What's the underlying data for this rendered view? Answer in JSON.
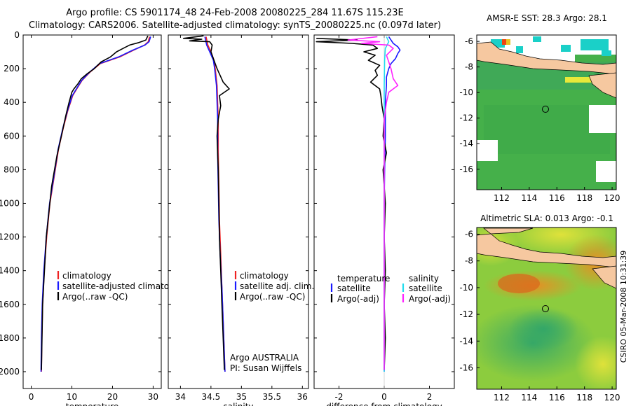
{
  "figure": {
    "title_line1": "Argo profile: CS 5901174_48 24-Feb-2008 20080225_284 11.67S 115.23E",
    "title_line2": "Climatology: CARS2006. Satellite-adjusted climatology: synTS_20080225.nc (0.097d later)",
    "side_stamp": "CSIRO 05-Mar-2008 10:31:39",
    "colors": {
      "climatology": "#ee2222",
      "satellite": "#1a1aff",
      "argo": "#000000",
      "satellite_salinity": "#22ddee",
      "argo_salinity_adj": "#ff22ff",
      "land": "#f6c8a0"
    }
  },
  "chart_data": [
    {
      "type": "line",
      "id": "temperature",
      "xlabel": "temperature",
      "ylabel": "",
      "xlim": [
        -2,
        32
      ],
      "ylim": [
        2100,
        0
      ],
      "y_inverted": true,
      "xticks": [
        0,
        10,
        20,
        30
      ],
      "yticks": [
        0,
        200,
        400,
        600,
        800,
        1000,
        1200,
        1400,
        1600,
        1800,
        2000
      ],
      "legend_placement": "lower-right",
      "legend": [
        "climatology",
        "satellite-adjusted climatology",
        "Argo(..raw -QC)"
      ],
      "series": [
        {
          "name": "climatology",
          "color": "climatology",
          "x": [
            29.1,
            28.8,
            27.9,
            25.2,
            21.8,
            17.0,
            14.5,
            12.5,
            11.2,
            10.2,
            9.0,
            7.9,
            6.7,
            5.6,
            4.6,
            3.8,
            3.2,
            2.8,
            2.6,
            2.5
          ],
          "y": [
            10,
            40,
            60,
            90,
            130,
            170,
            220,
            270,
            320,
            360,
            450,
            550,
            680,
            850,
            1000,
            1200,
            1400,
            1600,
            1800,
            2000
          ]
        },
        {
          "name": "satellite-adjusted climatology",
          "color": "satellite",
          "x": [
            29.4,
            29.0,
            28.0,
            25.0,
            21.5,
            16.8,
            14.4,
            12.4,
            11.1,
            10.1,
            8.9,
            7.8,
            6.6,
            5.5,
            4.5,
            3.7,
            3.1,
            2.7,
            2.5,
            2.4
          ],
          "y": [
            10,
            40,
            60,
            90,
            130,
            170,
            220,
            270,
            320,
            360,
            450,
            550,
            680,
            850,
            1000,
            1200,
            1400,
            1600,
            1800,
            2000
          ]
        },
        {
          "name": "Argo(..raw -QC)",
          "color": "argo",
          "x": [
            28.7,
            28.2,
            26.5,
            24.2,
            22.6,
            21.0,
            19.5,
            17.2,
            15.5,
            13.8,
            12.3,
            11.5,
            10.5,
            10.0,
            9.3,
            8.5,
            7.6,
            6.3,
            5.0,
            3.7,
            2.8,
            2.5
          ],
          "y": [
            5,
            30,
            45,
            60,
            80,
            100,
            130,
            160,
            200,
            230,
            260,
            290,
            320,
            340,
            400,
            480,
            580,
            720,
            900,
            1200,
            1600,
            1990
          ]
        }
      ]
    },
    {
      "type": "line",
      "id": "salinity",
      "xlabel": "salinity",
      "ylabel": "",
      "xlim": [
        33.8,
        36.1
      ],
      "ylim": [
        2100,
        0
      ],
      "y_inverted": true,
      "xticks": [
        34,
        34.5,
        35,
        35.5,
        36
      ],
      "yticks": [
        0,
        200,
        400,
        600,
        800,
        1000,
        1200,
        1400,
        1600,
        1800,
        2000
      ],
      "legend_placement": "lower-right",
      "legend": [
        "climatology",
        "satellite adj. clim.",
        "Argo(..raw -QC)"
      ],
      "annotation_lines": [
        "Argo AUSTRALIA",
        "PI: Susan Wijffels"
      ],
      "series": [
        {
          "name": "climatology",
          "color": "climatology",
          "x": [
            34.42,
            34.45,
            34.5,
            34.55,
            34.57,
            34.6,
            34.61,
            34.62,
            34.62,
            34.62,
            34.63,
            34.64,
            34.66,
            34.68,
            34.7,
            34.72,
            34.73
          ],
          "y": [
            10,
            60,
            100,
            150,
            200,
            300,
            400,
            500,
            600,
            700,
            900,
            1100,
            1300,
            1500,
            1700,
            1900,
            2000
          ]
        },
        {
          "name": "satellite adj. clim.",
          "color": "satellite",
          "x": [
            34.4,
            34.43,
            34.48,
            34.54,
            34.56,
            34.59,
            34.6,
            34.61,
            34.61,
            34.61,
            34.62,
            34.63,
            34.65,
            34.68,
            34.7,
            34.72,
            34.73
          ],
          "y": [
            10,
            60,
            100,
            150,
            200,
            300,
            400,
            500,
            600,
            700,
            900,
            1100,
            1300,
            1500,
            1700,
            1900,
            2000
          ]
        },
        {
          "name": "Argo(..raw -QC)",
          "color": "argo",
          "x": [
            34.38,
            34.05,
            34.35,
            34.15,
            34.48,
            34.52,
            34.5,
            34.55,
            34.6,
            34.7,
            34.8,
            34.64,
            34.66,
            34.62,
            34.6,
            34.61,
            34.62,
            34.63,
            34.64,
            34.66,
            34.68,
            34.7,
            34.72
          ],
          "y": [
            5,
            20,
            25,
            35,
            40,
            60,
            100,
            150,
            200,
            280,
            320,
            360,
            420,
            500,
            600,
            700,
            800,
            1000,
            1200,
            1400,
            1600,
            1800,
            1990
          ]
        }
      ]
    },
    {
      "type": "line",
      "id": "difference",
      "xlabel": "difference from climatology",
      "ylabel": "",
      "xlim": [
        -3.1,
        3.1
      ],
      "ylim": [
        2100,
        0
      ],
      "y_inverted": true,
      "xticks": [
        -2,
        0,
        2
      ],
      "yticks": [
        0,
        200,
        400,
        600,
        800,
        1000,
        1200,
        1400,
        1600,
        1800,
        2000
      ],
      "legend_placement": "lower",
      "legend_groups": [
        {
          "heading": "temperature",
          "items": [
            "satellite",
            "Argo(-adj)"
          ]
        },
        {
          "heading": "salinity",
          "items": [
            "satellite",
            "Argo(-adj)"
          ]
        }
      ],
      "series": [
        {
          "name": "temperature satellite",
          "color": "satellite",
          "x": [
            0.2,
            0.3,
            0.4,
            0.6,
            0.7,
            0.6,
            0.5,
            0.3,
            0.2,
            0.1,
            0.1,
            0.05,
            0.05,
            0.02,
            0.0,
            0.0,
            0.0,
            0.0
          ],
          "y": [
            10,
            30,
            50,
            70,
            90,
            110,
            140,
            170,
            200,
            250,
            300,
            400,
            600,
            800,
            1000,
            1300,
            1600,
            2000
          ]
        },
        {
          "name": "temperature Argo(-adj)",
          "color": "argo",
          "x": [
            -3.0,
            -1.2,
            -3.0,
            -1.4,
            -0.5,
            -0.3,
            -0.9,
            -0.4,
            -0.7,
            -0.2,
            -0.4,
            -0.3,
            -0.6,
            -0.2,
            -0.15,
            -0.1,
            0.0,
            -0.05,
            0.1,
            -0.05,
            0.05,
            0.0,
            0.05,
            0.0,
            0.05,
            0.0
          ],
          "y": [
            20,
            30,
            40,
            50,
            60,
            80,
            100,
            120,
            150,
            180,
            210,
            240,
            280,
            320,
            360,
            420,
            500,
            600,
            700,
            800,
            1000,
            1200,
            1400,
            1600,
            1800,
            1990
          ]
        },
        {
          "name": "salinity satellite",
          "color": "satellite_salinity",
          "x": [
            0.1,
            0.2,
            0.05,
            0.02,
            0.0,
            0.0,
            0.0,
            0.0,
            0.0,
            0.0,
            0.0
          ],
          "y": [
            10,
            40,
            80,
            150,
            300,
            500,
            800,
            1100,
            1400,
            1700,
            2000
          ]
        },
        {
          "name": "salinity Argo(-adj)",
          "color": "argo_salinity_adj",
          "x": [
            -0.3,
            -1.6,
            -0.2,
            -1.0,
            0.2,
            0.4,
            0.1,
            0.2,
            0.3,
            0.4,
            0.6,
            0.2,
            0.1,
            0.0,
            0.0,
            0.0,
            0.0,
            0.0
          ],
          "y": [
            10,
            30,
            40,
            50,
            60,
            80,
            120,
            160,
            200,
            260,
            300,
            340,
            400,
            500,
            700,
            1000,
            1500,
            1990
          ]
        }
      ]
    },
    {
      "type": "heatmap",
      "id": "sst_map",
      "title": "AMSR-E SST: 28.3 Argo: 28.1",
      "xlim": [
        110.2,
        120.3
      ],
      "ylim": [
        -17.6,
        -5.5
      ],
      "xticks": [
        112,
        114,
        116,
        118,
        120
      ],
      "yticks": [
        -6,
        -8,
        -10,
        -12,
        -14,
        -16
      ],
      "marker": {
        "x": 115.23,
        "y": -11.67
      }
    },
    {
      "type": "heatmap",
      "id": "sla_map",
      "title": "Altimetric SLA: 0.013 Argo: -0.1",
      "xlim": [
        110.2,
        120.3
      ],
      "ylim": [
        -17.6,
        -5.5
      ],
      "xticks": [
        112,
        114,
        116,
        118,
        120
      ],
      "yticks": [
        -6,
        -8,
        -10,
        -12,
        -14,
        -16
      ],
      "marker": {
        "x": 115.23,
        "y": -11.67
      }
    }
  ]
}
